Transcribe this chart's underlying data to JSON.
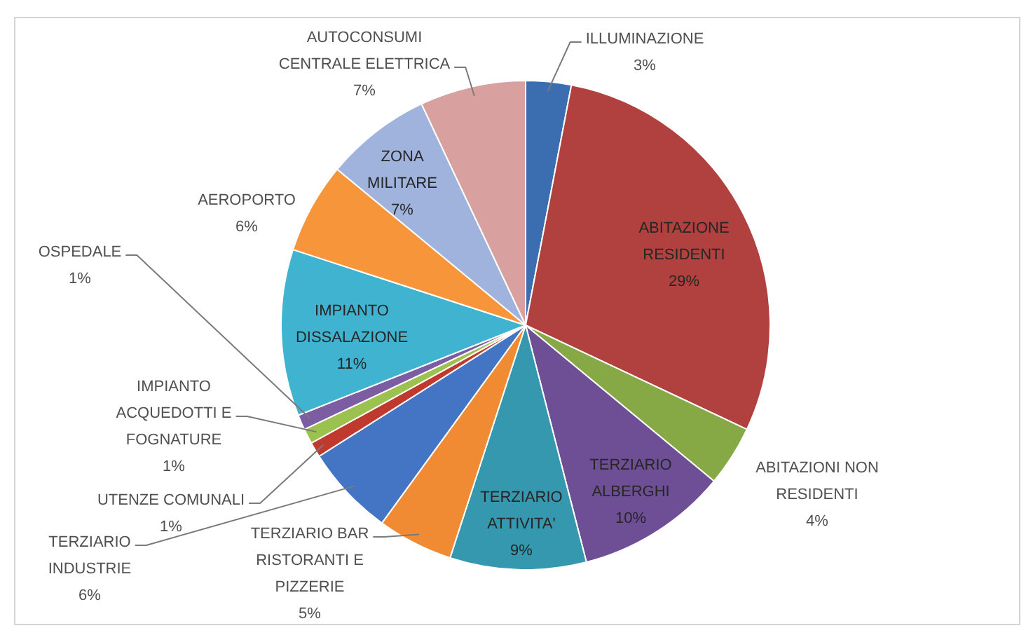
{
  "chart_data": {
    "type": "pie",
    "categories": [
      "ILLUMINAZIONE",
      "ABITAZIONE RESIDENTI",
      "ABITAZIONI NON RESIDENTI",
      "TERZIARIO ALBERGHI",
      "TERZIARIO ATTIVITA'",
      "TERZIARIO BAR RISTORANTI E PIZZERIE",
      "TERZIARIO INDUSTRIE",
      "UTENZE COMUNALI",
      "IMPIANTO ACQUEDOTTI E FOGNATURE",
      "OSPEDALE",
      "IMPIANTO DISSALAZIONE",
      "AEROPORTO",
      "ZONA MILITARE",
      "AUTOCONSUMI CENTRALE ELETTRICA"
    ],
    "values": [
      3,
      29,
      4,
      10,
      9,
      5,
      6,
      1,
      1,
      1,
      11,
      6,
      7,
      7
    ],
    "value_labels": [
      "3%",
      "29%",
      "4%",
      "10%",
      "9%",
      "5%",
      "6%",
      "1%",
      "1%",
      "1%",
      "11%",
      "6%",
      "7%",
      "7%"
    ],
    "colors": [
      "#3a6eb0",
      "#b0413e",
      "#86a845",
      "#6e4f96",
      "#3598ae",
      "#f08a33",
      "#4475c4",
      "#c0392f",
      "#9bc24f",
      "#7c5ca3",
      "#3fb3cf",
      "#f7953a",
      "#9fb3dc",
      "#d9a0a0"
    ]
  }
}
